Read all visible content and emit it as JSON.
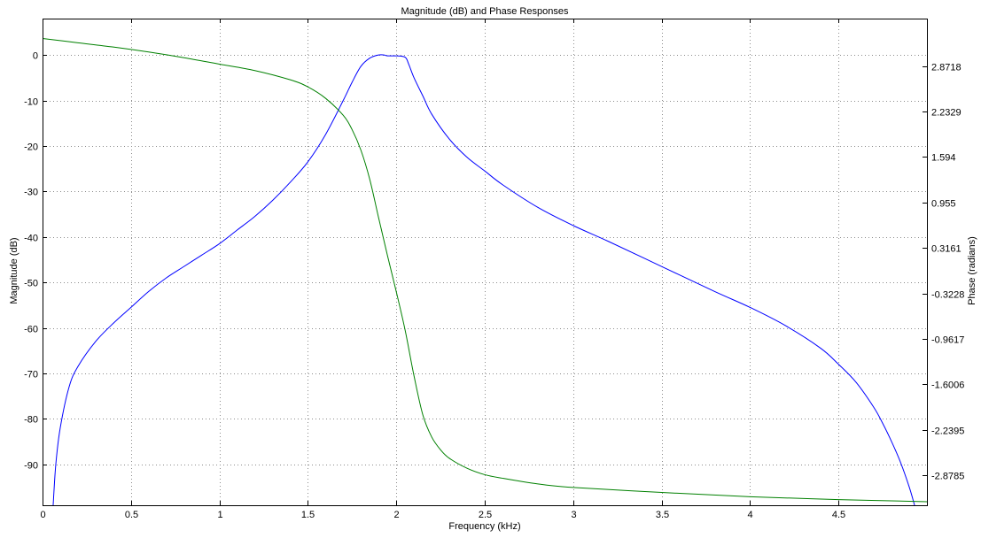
{
  "chart_data": {
    "type": "line",
    "title": "Magnitude (dB) and Phase Responses",
    "xlabel": "Frequency (kHz)",
    "ylabel": "Magnitude (dB)",
    "ylabel_right": "Phase (radians)",
    "xlim": [
      0,
      5
    ],
    "ylim": [
      -99,
      8
    ],
    "ylim_right": [
      -3.3,
      3.54
    ],
    "x_ticks": [
      0,
      0.5,
      1,
      1.5,
      2,
      2.5,
      3,
      3.5,
      4,
      4.5
    ],
    "x_tick_labels": [
      "0",
      "0.5",
      "1",
      "1.5",
      "2",
      "2.5",
      "3",
      "3.5",
      "4",
      "4.5"
    ],
    "y_ticks": [
      0,
      -10,
      -20,
      -30,
      -40,
      -50,
      -60,
      -70,
      -80,
      -90
    ],
    "y_tick_labels": [
      "0",
      "-10",
      "-20",
      "-30",
      "-40",
      "-50",
      "-60",
      "-70",
      "-80",
      "-90"
    ],
    "y_ticks_right": [
      2.8718,
      2.2329,
      1.594,
      0.955,
      0.3161,
      -0.3228,
      -0.9617,
      -1.6006,
      -2.2395,
      -2.8785
    ],
    "y_tick_labels_right": [
      "2.8718",
      "2.2329",
      "1.594",
      "0.955",
      "0.3161",
      "-0.3228",
      "-0.9617",
      "-1.6006",
      "-2.2395",
      "-2.8785"
    ],
    "grid": true,
    "colors": {
      "magnitude": "#0000ff",
      "phase": "#008000"
    },
    "series": [
      {
        "axis": "left",
        "color": "#0000ff",
        "x": [
          0.06,
          0.075,
          0.1,
          0.15,
          0.2,
          0.3,
          0.4,
          0.5,
          0.6,
          0.7,
          0.8,
          0.9,
          1.0,
          1.1,
          1.2,
          1.3,
          1.4,
          1.5,
          1.6,
          1.7,
          1.75,
          1.8,
          1.85,
          1.9,
          1.93,
          1.95,
          2.0,
          2.05,
          2.07,
          2.1,
          2.15,
          2.2,
          2.3,
          2.4,
          2.5,
          2.6,
          2.8,
          3.0,
          3.2,
          3.5,
          3.8,
          4.0,
          4.2,
          4.4,
          4.5,
          4.6,
          4.7,
          4.75,
          4.8,
          4.85,
          4.9,
          4.93
        ],
        "values": [
          -99,
          -90,
          -82,
          -73,
          -68.5,
          -63,
          -59,
          -55.5,
          -52,
          -49,
          -46.5,
          -44,
          -41.5,
          -38.5,
          -35.5,
          -32,
          -28,
          -23.5,
          -17.5,
          -10,
          -6,
          -2.5,
          -0.7,
          0,
          0,
          -0.2,
          -0.2,
          -0.5,
          -2,
          -5,
          -9,
          -13,
          -18.5,
          -22.5,
          -25.5,
          -28.5,
          -33.5,
          -37.5,
          -41,
          -46.5,
          -52,
          -55.5,
          -59.5,
          -64.5,
          -68,
          -72,
          -77.5,
          -81,
          -85,
          -89.5,
          -95,
          -99
        ]
      },
      {
        "axis": "right",
        "color": "#008000",
        "x": [
          0,
          0.2,
          0.4,
          0.6,
          0.8,
          1.0,
          1.2,
          1.4,
          1.5,
          1.6,
          1.7,
          1.75,
          1.8,
          1.85,
          1.9,
          1.95,
          2.0,
          2.05,
          2.1,
          2.15,
          2.2,
          2.25,
          2.3,
          2.4,
          2.5,
          2.6,
          2.8,
          3.0,
          3.5,
          4.0,
          4.5,
          5.0
        ],
        "values": [
          3.26,
          3.2,
          3.14,
          3.07,
          2.99,
          2.9,
          2.81,
          2.68,
          2.58,
          2.42,
          2.18,
          1.98,
          1.69,
          1.28,
          0.74,
          0.21,
          -0.3,
          -0.84,
          -1.48,
          -2.03,
          -2.34,
          -2.52,
          -2.64,
          -2.78,
          -2.87,
          -2.92,
          -3.0,
          -3.05,
          -3.12,
          -3.18,
          -3.22,
          -3.25
        ]
      }
    ]
  }
}
